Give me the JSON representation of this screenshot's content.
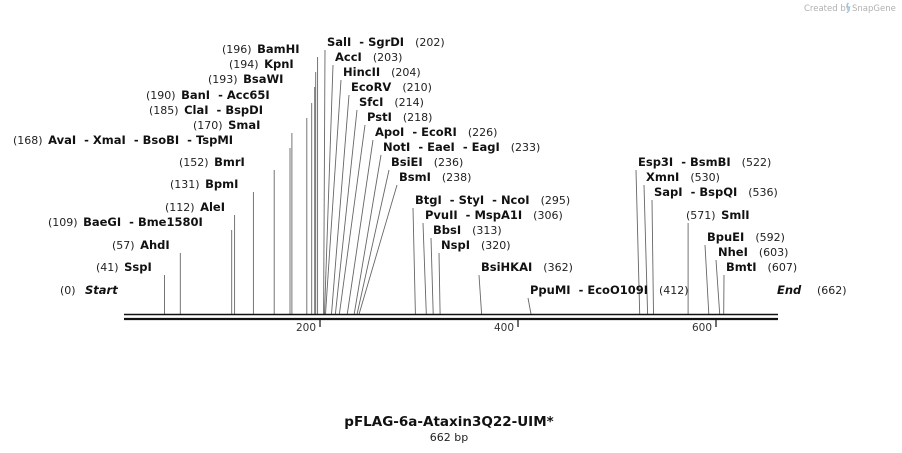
{
  "brand": {
    "prefix": "Created by",
    "name": "SnapGene"
  },
  "sequence": {
    "name": "pFLAG-6a-Ataxin3Q22-UIM*",
    "length_label": "662 bp",
    "length": 662
  },
  "ends": [
    {
      "pos": 0,
      "pos_label": "(0)",
      "label": "Start"
    },
    {
      "pos": 662,
      "pos_label": "(662)",
      "label": "End"
    }
  ],
  "ruler": [
    "200",
    "400",
    "600"
  ],
  "sites": [
    {
      "pos": 41,
      "pos_label": "(41)",
      "names": [
        "SspI"
      ]
    },
    {
      "pos": 57,
      "pos_label": "(57)",
      "names": [
        "AhdI"
      ]
    },
    {
      "pos": 109,
      "pos_label": "(109)",
      "names": [
        "BaeGI",
        "Bme1580I"
      ]
    },
    {
      "pos": 112,
      "pos_label": "(112)",
      "names": [
        "AleI"
      ]
    },
    {
      "pos": 131,
      "pos_label": "(131)",
      "names": [
        "BpmI"
      ]
    },
    {
      "pos": 152,
      "pos_label": "(152)",
      "names": [
        "BmrI"
      ]
    },
    {
      "pos": 168,
      "pos_label": "(168)",
      "names": [
        "AvaI",
        "XmaI",
        "BsoBI",
        "TspMI"
      ]
    },
    {
      "pos": 170,
      "pos_label": "(170)",
      "names": [
        "SmaI"
      ]
    },
    {
      "pos": 185,
      "pos_label": "(185)",
      "names": [
        "ClaI",
        "BspDI"
      ]
    },
    {
      "pos": 190,
      "pos_label": "(190)",
      "names": [
        "BanI",
        "Acc65I"
      ]
    },
    {
      "pos": 193,
      "pos_label": "(193)",
      "names": [
        "BsaWI"
      ]
    },
    {
      "pos": 194,
      "pos_label": "(194)",
      "names": [
        "KpnI"
      ]
    },
    {
      "pos": 196,
      "pos_label": "(196)",
      "names": [
        "BamHI"
      ]
    },
    {
      "pos": 202,
      "pos_label": "(202)",
      "names": [
        "SalI",
        "SgrDI"
      ]
    },
    {
      "pos": 203,
      "pos_label": "(203)",
      "names": [
        "AccI"
      ]
    },
    {
      "pos": 204,
      "pos_label": "(204)",
      "names": [
        "HincII"
      ]
    },
    {
      "pos": 210,
      "pos_label": "(210)",
      "names": [
        "EcoRV"
      ]
    },
    {
      "pos": 214,
      "pos_label": "(214)",
      "names": [
        "SfcI"
      ]
    },
    {
      "pos": 218,
      "pos_label": "(218)",
      "names": [
        "PstI"
      ]
    },
    {
      "pos": 226,
      "pos_label": "(226)",
      "names": [
        "ApoI",
        "EcoRI"
      ]
    },
    {
      "pos": 233,
      "pos_label": "(233)",
      "names": [
        "NotI",
        "EaeI",
        "EagI"
      ]
    },
    {
      "pos": 236,
      "pos_label": "(236)",
      "names": [
        "BsiEI"
      ]
    },
    {
      "pos": 238,
      "pos_label": "(238)",
      "names": [
        "BsmI"
      ]
    },
    {
      "pos": 295,
      "pos_label": "(295)",
      "names": [
        "BtgI",
        "StyI",
        "NcoI"
      ]
    },
    {
      "pos": 306,
      "pos_label": "(306)",
      "names": [
        "PvuII",
        "MspA1I"
      ]
    },
    {
      "pos": 313,
      "pos_label": "(313)",
      "names": [
        "BbsI"
      ]
    },
    {
      "pos": 320,
      "pos_label": "(320)",
      "names": [
        "NspI"
      ]
    },
    {
      "pos": 362,
      "pos_label": "(362)",
      "names": [
        "BsiHKAI"
      ]
    },
    {
      "pos": 412,
      "pos_label": "(412)",
      "names": [
        "PpuMI",
        "EcoO109I"
      ]
    },
    {
      "pos": 522,
      "pos_label": "(522)",
      "names": [
        "Esp3I",
        "BsmBI"
      ]
    },
    {
      "pos": 530,
      "pos_label": "(530)",
      "names": [
        "XmnI"
      ]
    },
    {
      "pos": 536,
      "pos_label": "(536)",
      "names": [
        "SapI",
        "BspQI"
      ]
    },
    {
      "pos": 571,
      "pos_label": "(571)",
      "names": [
        "SmlI"
      ]
    },
    {
      "pos": 592,
      "pos_label": "(592)",
      "names": [
        "BpuEI"
      ]
    },
    {
      "pos": 603,
      "pos_label": "(603)",
      "names": [
        "NheI"
      ]
    },
    {
      "pos": 607,
      "pos_label": "(607)",
      "names": [
        "BmtI"
      ]
    }
  ]
}
